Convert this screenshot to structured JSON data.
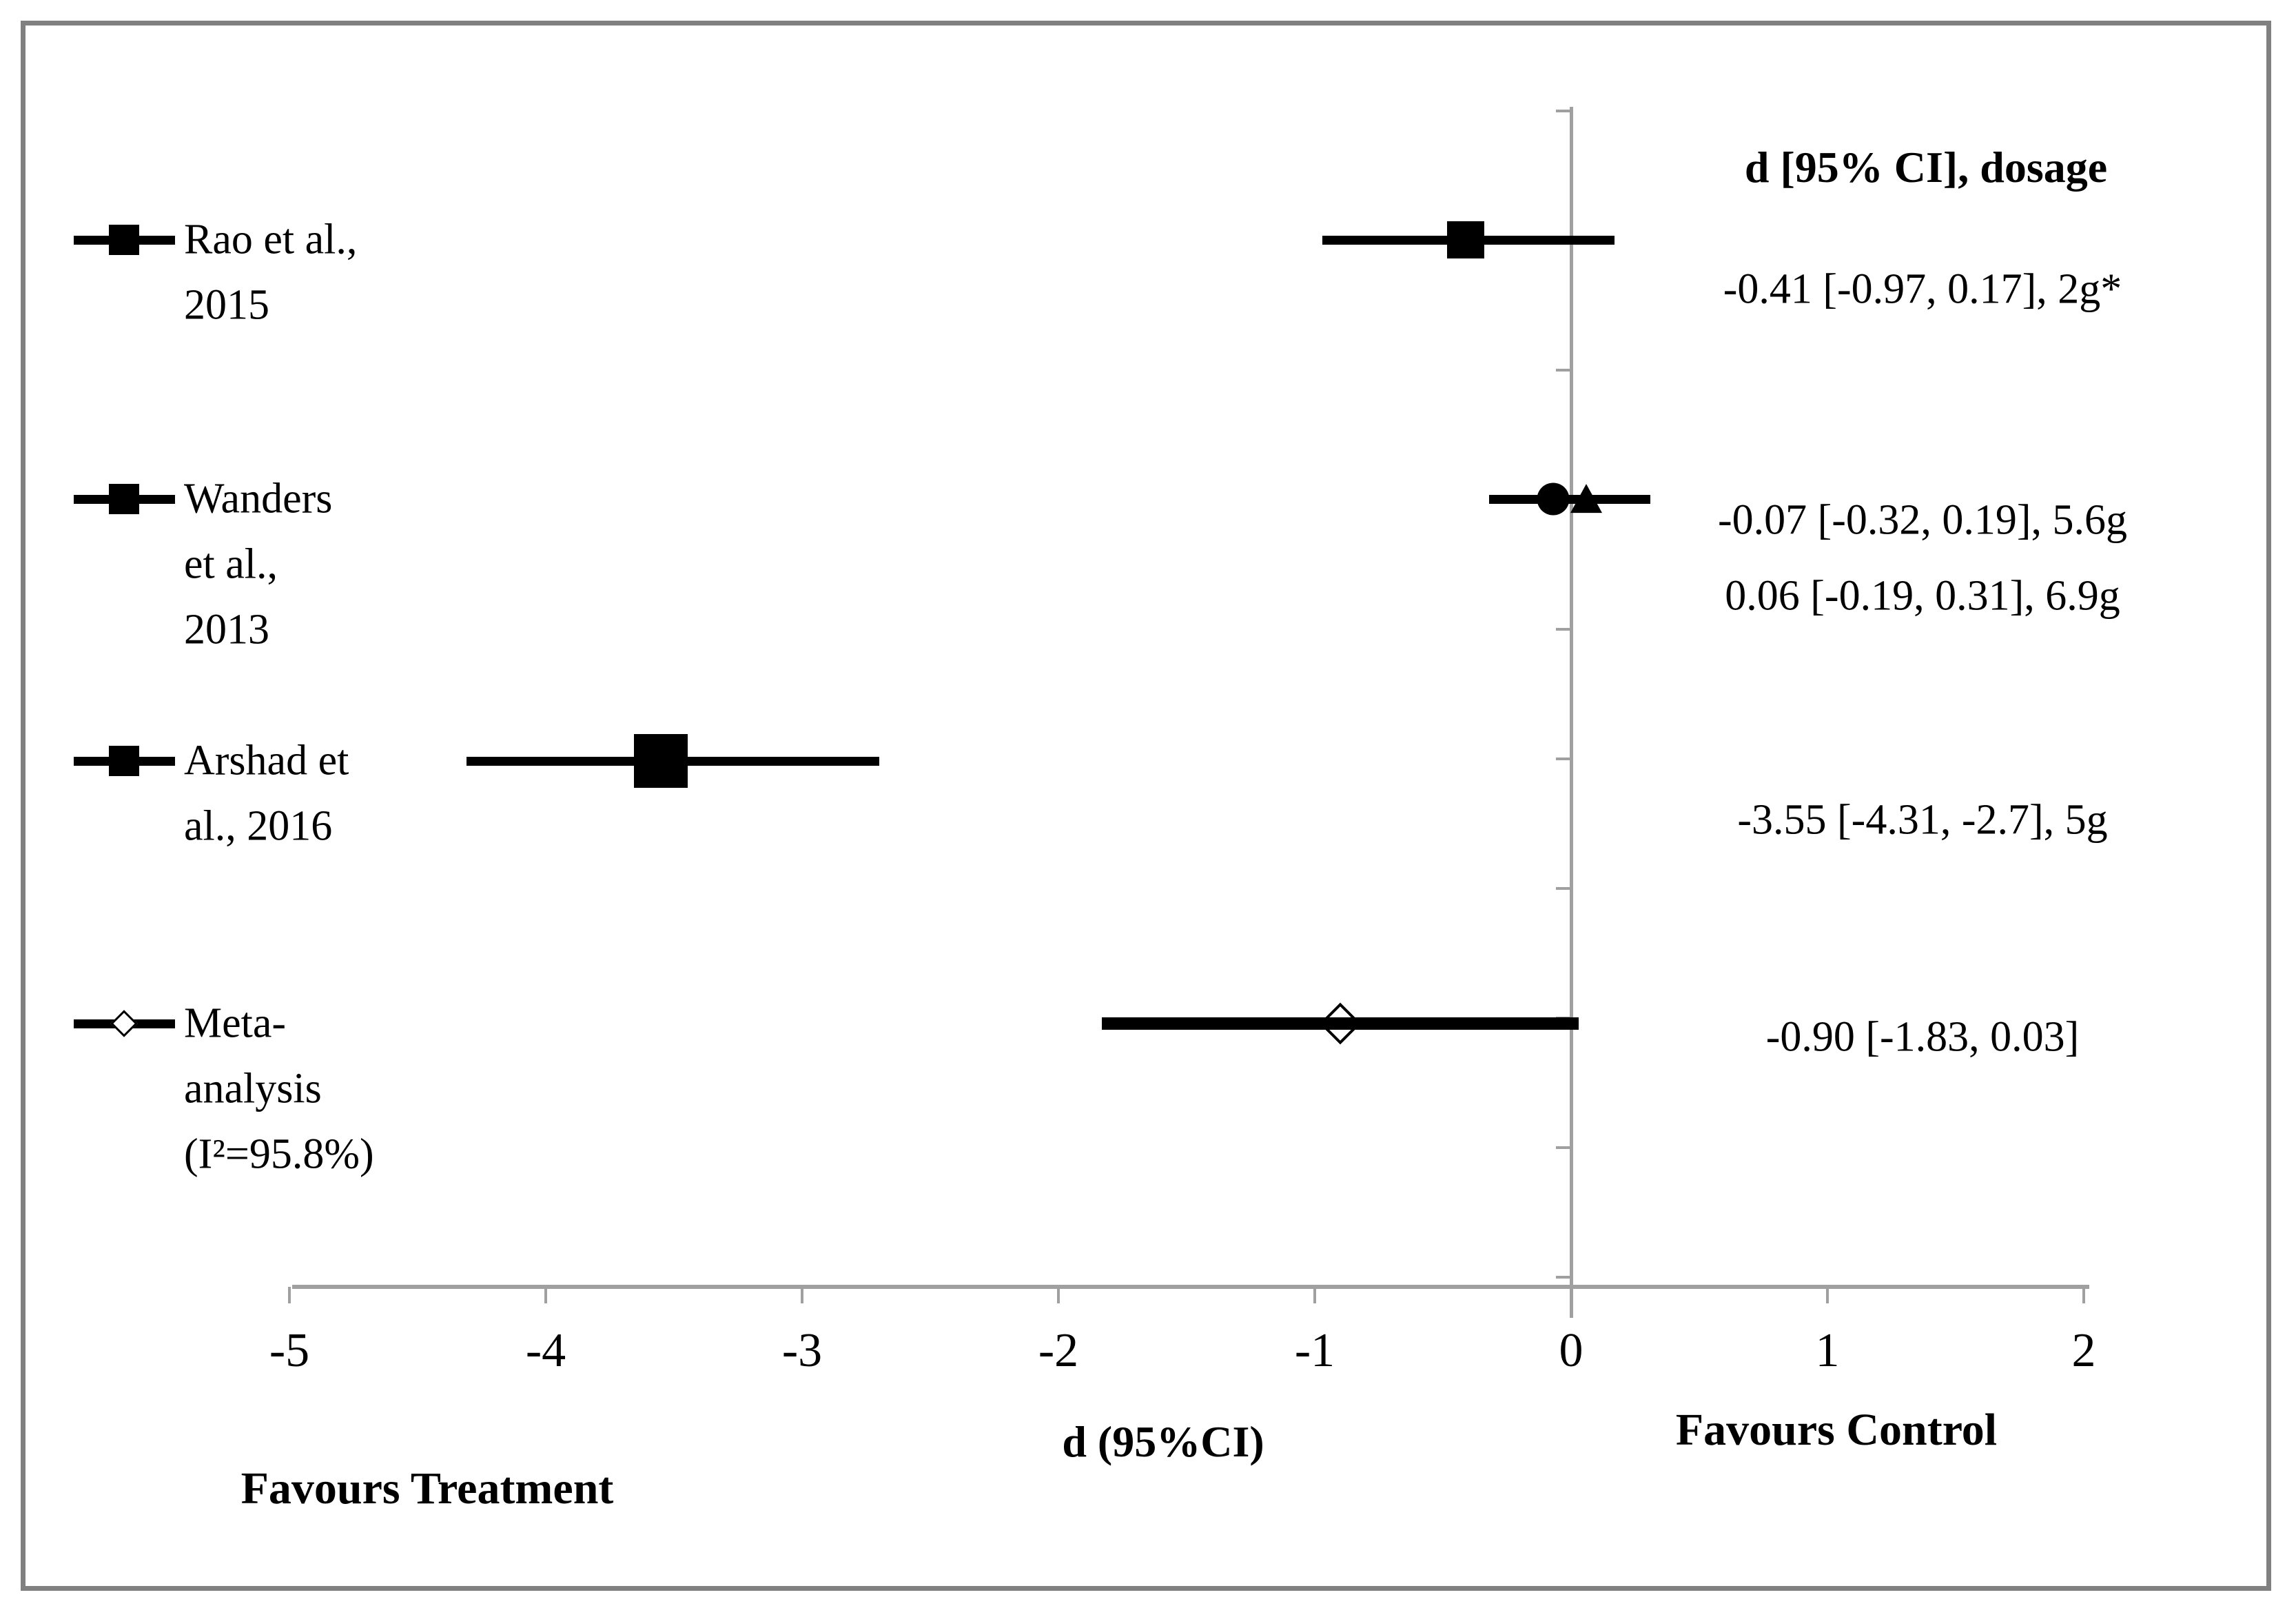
{
  "figure": {
    "border_color": "#808080",
    "axis_color": "#a0a0a0",
    "ink_color": "#000000",
    "background": "#ffffff"
  },
  "chart_data": {
    "type": "forest",
    "title": "",
    "xlabel": "d (95%CI)",
    "column_header": "d [95% CI], dosage",
    "left_label": "Favours Treatment",
    "right_label": "Favours Control",
    "xlim": [
      -5,
      2
    ],
    "x_ticks": [
      "-5",
      "-4",
      "-3",
      "-2",
      "-1",
      "0",
      "1",
      "2"
    ],
    "x_tick_values": [
      -5,
      -4,
      -3,
      -2,
      -1,
      0,
      1,
      2
    ],
    "grid": "off",
    "zero_line": 0,
    "rows": [
      {
        "study": "Rao et al., 2015",
        "legend_lines": [
          "Rao et al.,",
          "2015"
        ],
        "legend_marker": "square",
        "points": [
          {
            "shape": "square",
            "d": -0.41,
            "lo": -0.97,
            "hi": 0.17,
            "size": 54
          }
        ],
        "value_lines": [
          "-0.41 [-0.97, 0.17], 2g*"
        ]
      },
      {
        "study": "Wanders et al., 2013",
        "legend_lines": [
          "Wanders",
          "et al.,",
          "2013"
        ],
        "legend_marker": "square",
        "points": [
          {
            "shape": "circle",
            "d": -0.07,
            "lo": -0.32,
            "hi": 0.19,
            "size": 47
          },
          {
            "shape": "triangle",
            "d": 0.06,
            "lo": -0.19,
            "hi": 0.31,
            "size": 47
          }
        ],
        "value_lines": [
          "-0.07 [-0.32, 0.19], 5.6g",
          "0.06 [-0.19, 0.31], 6.9g"
        ]
      },
      {
        "study": "Arshad et al., 2016",
        "legend_lines": [
          "Arshad et",
          "al., 2016"
        ],
        "legend_marker": "square",
        "points": [
          {
            "shape": "square",
            "d": -3.55,
            "lo": -4.31,
            "hi": -2.7,
            "size": 78
          }
        ],
        "value_lines": [
          "-3.55 [-4.31, -2.7], 5g"
        ]
      },
      {
        "study": "Meta-analysis (I²=95.8%)",
        "legend_lines": [
          "Meta-",
          "analysis",
          "(I²=95.8%)"
        ],
        "legend_marker": "diamond-open",
        "points": [
          {
            "shape": "diamond-open",
            "d": -0.9,
            "lo": -1.83,
            "hi": 0.03,
            "size": 54
          }
        ],
        "value_lines": [
          "-0.90 [-1.83, 0.03]"
        ]
      }
    ]
  }
}
